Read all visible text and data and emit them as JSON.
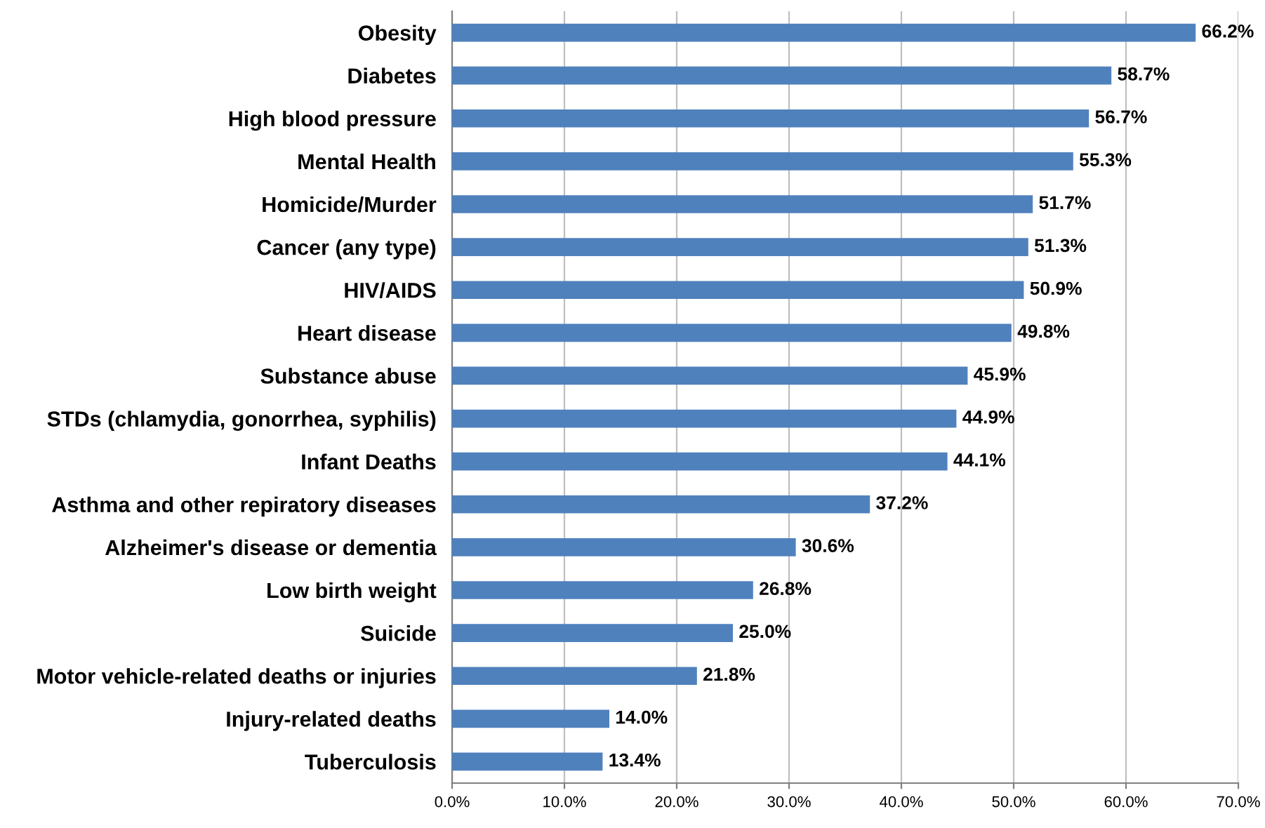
{
  "chart_data": {
    "type": "bar",
    "orientation": "horizontal",
    "categories": [
      "Obesity",
      "Diabetes",
      "High blood pressure",
      "Mental Health",
      "Homicide/Murder",
      "Cancer (any type)",
      "HIV/AIDS",
      "Heart disease",
      "Substance abuse",
      "STDs (chlamydia, gonorrhea, syphilis)",
      "Infant Deaths",
      "Asthma and other repiratory diseases",
      "Alzheimer's disease or dementia",
      "Low birth weight",
      "Suicide",
      "Motor vehicle-related deaths or injuries",
      "Injury-related deaths",
      "Tuberculosis"
    ],
    "values": [
      66.2,
      58.7,
      56.7,
      55.3,
      51.7,
      51.3,
      50.9,
      49.8,
      45.9,
      44.9,
      44.1,
      37.2,
      30.6,
      26.8,
      25.0,
      21.8,
      14.0,
      13.4
    ],
    "value_labels": [
      "66.2%",
      "58.7%",
      "56.7%",
      "55.3%",
      "51.7%",
      "51.3%",
      "50.9%",
      "49.8%",
      "45.9%",
      "44.9%",
      "44.1%",
      "37.2%",
      "30.6%",
      "26.8%",
      "25.0%",
      "21.8%",
      "14.0%",
      "13.4%"
    ],
    "color": "#4f81bd",
    "xlim": [
      0,
      70
    ],
    "xticks": [
      {
        "value": 0,
        "label": "0.0%"
      },
      {
        "value": 10,
        "label": "10.0%"
      },
      {
        "value": 20,
        "label": "20.0%"
      },
      {
        "value": 30,
        "label": "30.0%"
      },
      {
        "value": 40,
        "label": "40.0%"
      },
      {
        "value": 50,
        "label": "50.0%"
      },
      {
        "value": 60,
        "label": "60.0%"
      },
      {
        "value": 70,
        "label": "70.0%"
      }
    ],
    "grid": "x",
    "legend": false
  }
}
